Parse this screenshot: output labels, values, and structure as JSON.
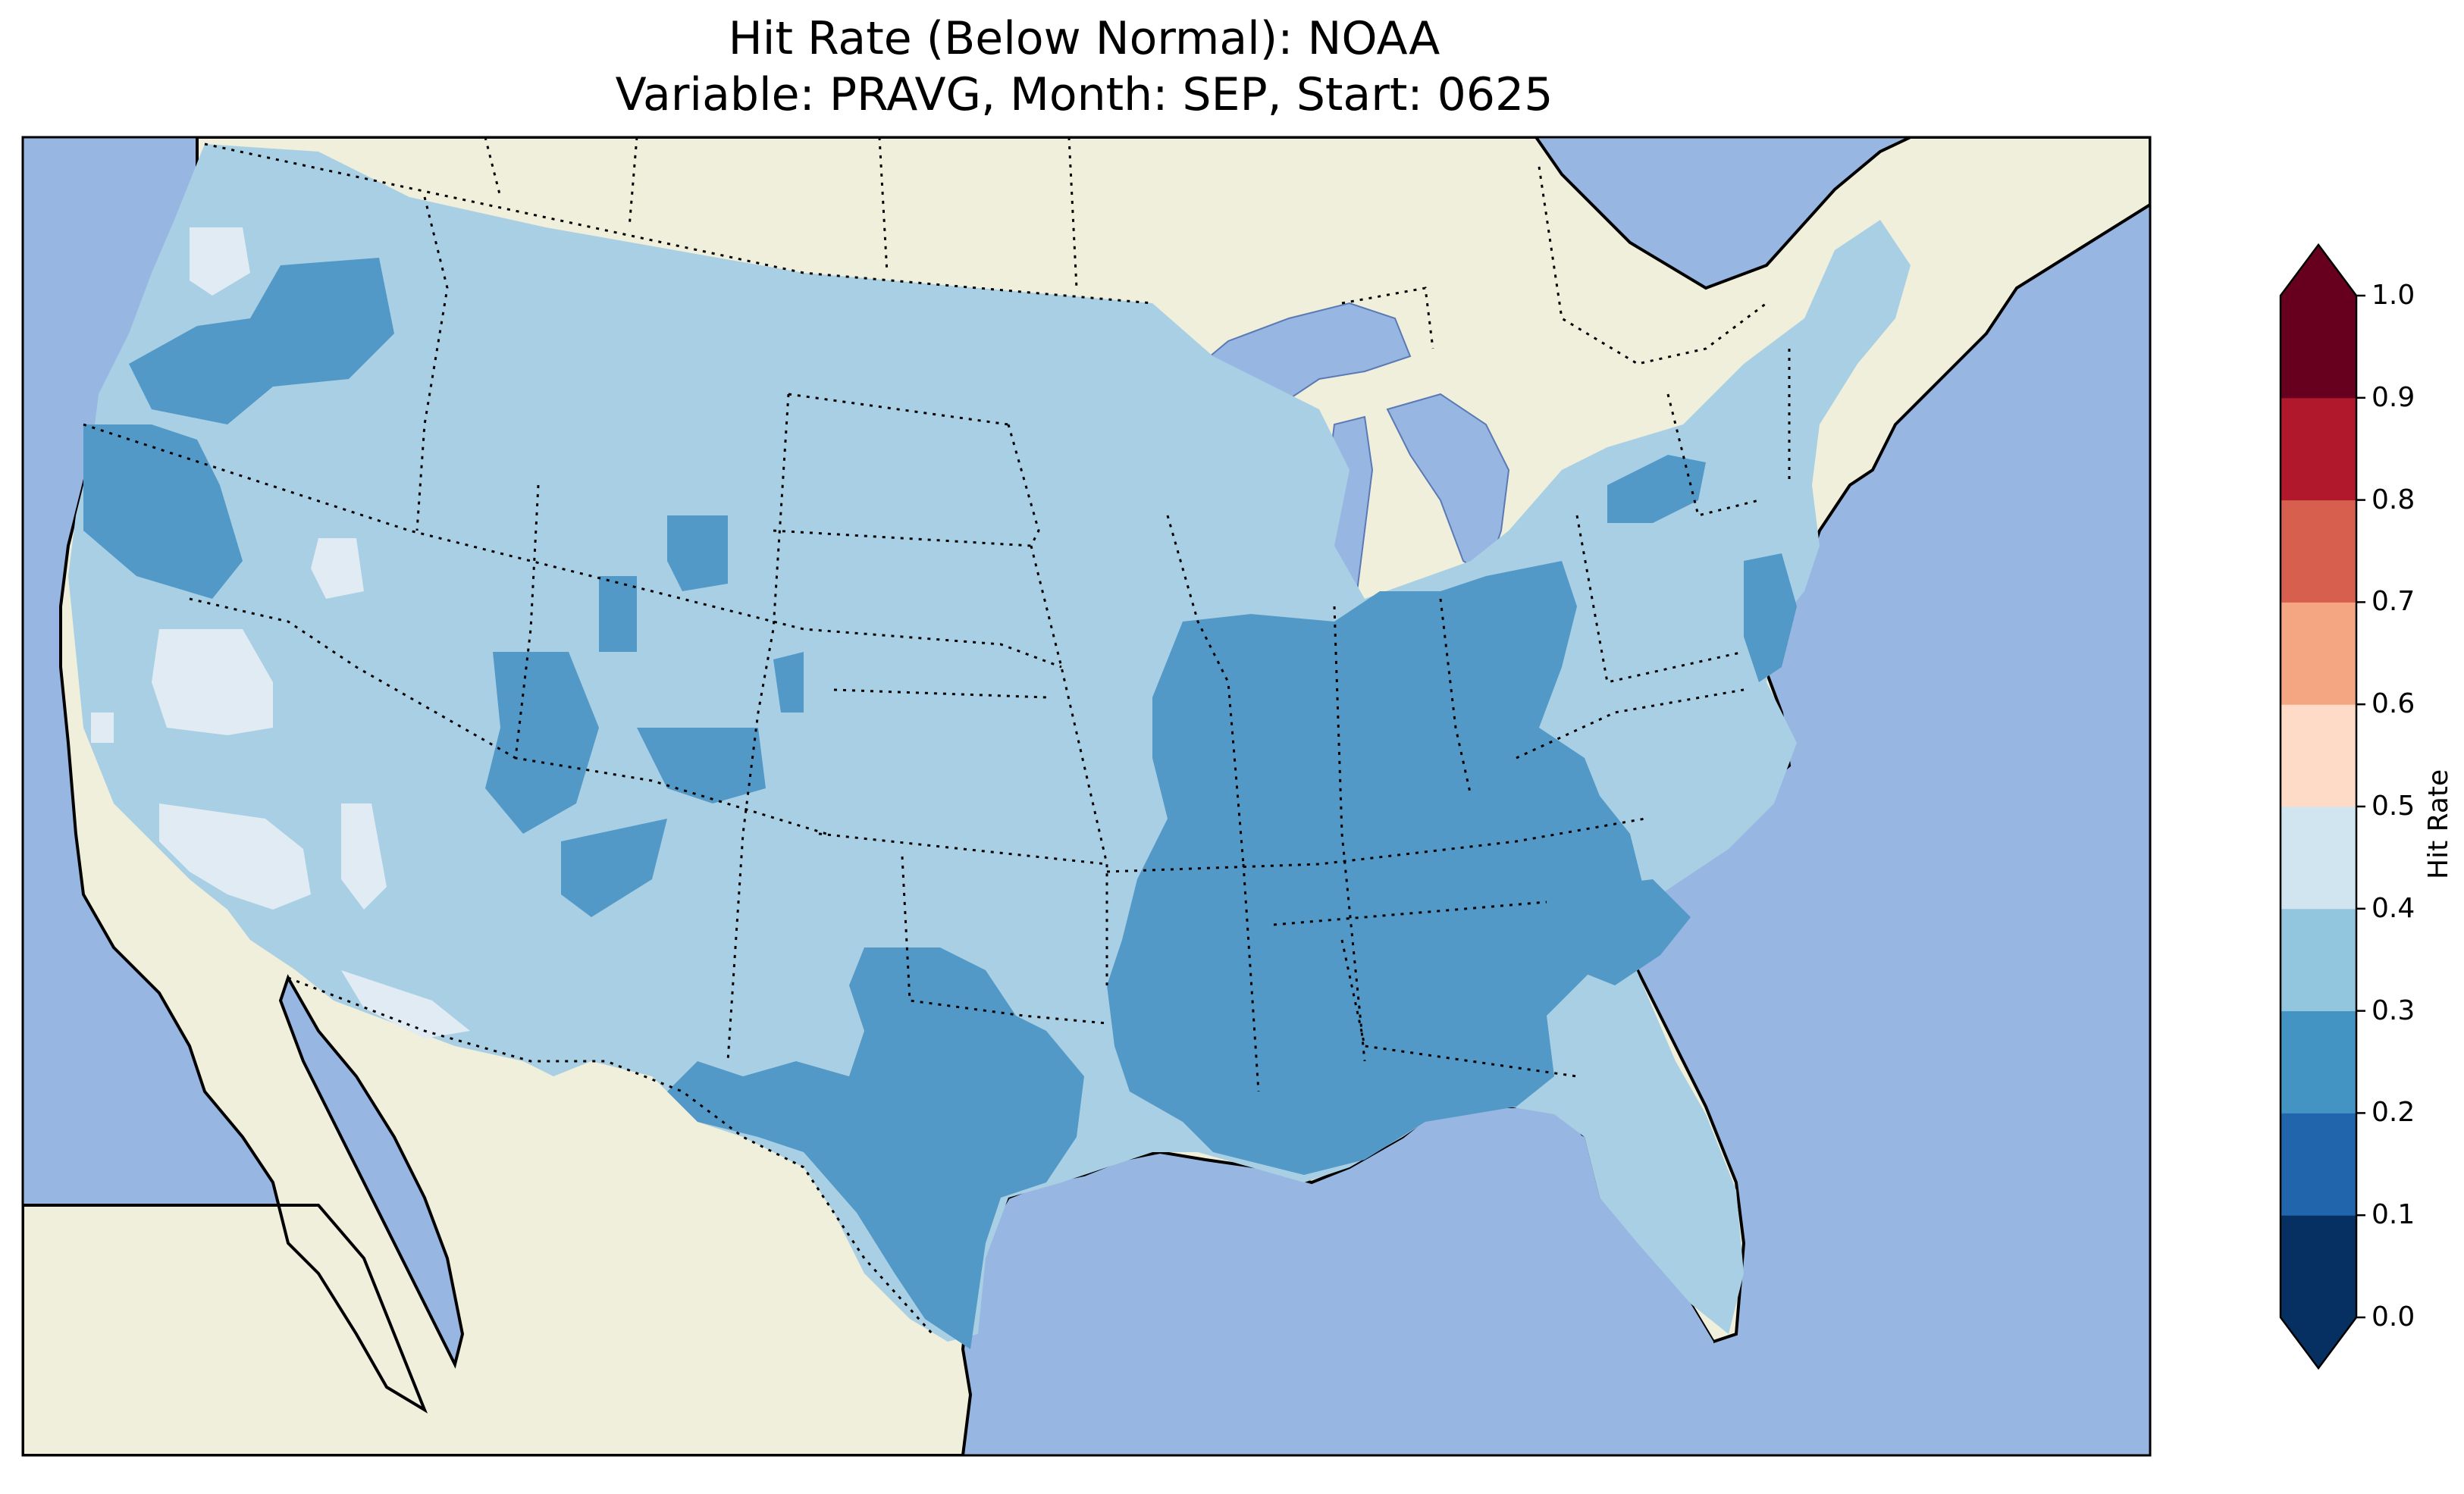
{
  "title": {
    "line1": "Hit Rate (Below Normal): NOAA",
    "line2": "Variable: PRAVG, Month: SEP, Start: 0625"
  },
  "map": {
    "colors": {
      "ocean": "#97b6e1",
      "land": "#efefdb",
      "coast": "#000000",
      "borders": "#000000"
    },
    "field_classes": [
      {
        "name": "0.2-0.3",
        "color": "#5299c8"
      },
      {
        "name": "0.3-0.4",
        "color": "#a9cfe4"
      },
      {
        "name": "0.4-0.5",
        "color": "#e0ebf3"
      }
    ]
  },
  "colorbar": {
    "label": "Hit Rate",
    "ticks": [
      "0.0",
      "0.1",
      "0.2",
      "0.3",
      "0.4",
      "0.5",
      "0.6",
      "0.7",
      "0.8",
      "0.9",
      "1.0"
    ],
    "colors": [
      "#053061",
      "#2166ac",
      "#4393c3",
      "#92c5de",
      "#d1e5f0",
      "#fddbc7",
      "#f4a582",
      "#d6604d",
      "#b2182b",
      "#67001f"
    ],
    "extend": "both"
  }
}
